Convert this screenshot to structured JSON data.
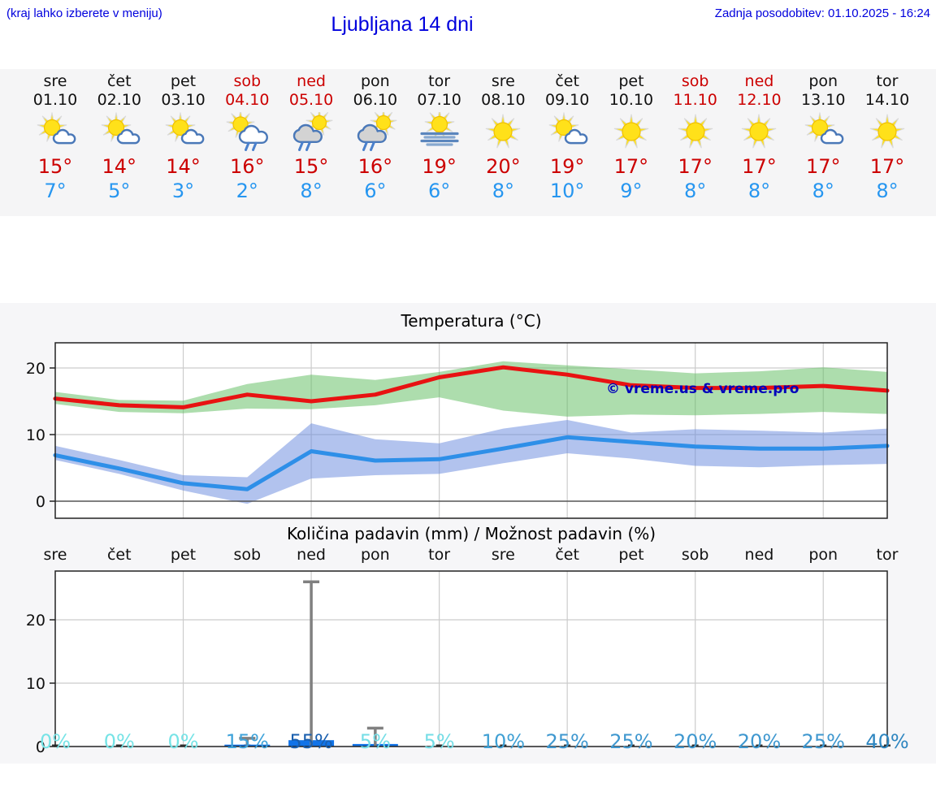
{
  "header": {
    "menu_hint": "(kraj lahko izberete v meniju)",
    "title": "Ljubljana 14 dni",
    "last_update": "Zadnja posodobitev: 01.10.2025 - 16:24"
  },
  "forecast": {
    "days": [
      {
        "weekday": "sre",
        "date": "01.10",
        "icon": "sun-cloud",
        "high": "15°",
        "low": "7°",
        "weekend": false
      },
      {
        "weekday": "čet",
        "date": "02.10",
        "icon": "sun-cloud",
        "high": "14°",
        "low": "5°",
        "weekend": false
      },
      {
        "weekday": "pet",
        "date": "03.10",
        "icon": "sun-cloud",
        "high": "14°",
        "low": "3°",
        "weekend": false
      },
      {
        "weekday": "sob",
        "date": "04.10",
        "icon": "sun-raincloud",
        "high": "16°",
        "low": "2°",
        "weekend": true
      },
      {
        "weekday": "ned",
        "date": "05.10",
        "icon": "cloud-sun-rain",
        "high": "15°",
        "low": "8°",
        "weekend": true
      },
      {
        "weekday": "pon",
        "date": "06.10",
        "icon": "cloud-sun-rain",
        "high": "16°",
        "low": "6°",
        "weekend": false
      },
      {
        "weekday": "tor",
        "date": "07.10",
        "icon": "sun-fog",
        "high": "19°",
        "low": "6°",
        "weekend": false
      },
      {
        "weekday": "sre",
        "date": "08.10",
        "icon": "sun",
        "high": "20°",
        "low": "8°",
        "weekend": false
      },
      {
        "weekday": "čet",
        "date": "09.10",
        "icon": "sun-cloud",
        "high": "19°",
        "low": "10°",
        "weekend": false
      },
      {
        "weekday": "pet",
        "date": "10.10",
        "icon": "sun",
        "high": "17°",
        "low": "9°",
        "weekend": false
      },
      {
        "weekday": "sob",
        "date": "11.10",
        "icon": "sun",
        "high": "17°",
        "low": "8°",
        "weekend": true
      },
      {
        "weekday": "ned",
        "date": "12.10",
        "icon": "sun",
        "high": "17°",
        "low": "8°",
        "weekend": true
      },
      {
        "weekday": "pon",
        "date": "13.10",
        "icon": "sun-cloud",
        "high": "17°",
        "low": "8°",
        "weekend": false
      },
      {
        "weekday": "tor",
        "date": "14.10",
        "icon": "sun",
        "high": "17°",
        "low": "8°",
        "weekend": false
      }
    ]
  },
  "chart_data": [
    {
      "type": "line",
      "title": "Temperatura (°C)",
      "categories": [
        "sre",
        "čet",
        "pet",
        "sob",
        "ned",
        "pon",
        "tor",
        "sre",
        "čet",
        "pet",
        "sob",
        "ned",
        "pon",
        "tor"
      ],
      "series": [
        {
          "name": "high",
          "color": "#e81212",
          "values": [
            15.4,
            14.4,
            14.1,
            16.0,
            15.0,
            16.0,
            18.6,
            20.1,
            19.0,
            17.4,
            17.0,
            17.0,
            17.3,
            16.6
          ]
        },
        {
          "name": "low",
          "color": "#2e8fe8",
          "values": [
            6.9,
            4.9,
            2.7,
            1.8,
            7.5,
            6.1,
            6.3,
            7.9,
            9.6,
            8.9,
            8.2,
            7.9,
            7.9,
            8.3
          ]
        },
        {
          "name": "high_range_upper",
          "values": [
            16.4,
            15.2,
            15.1,
            17.6,
            19.0,
            18.2,
            19.4,
            21.0,
            20.4,
            19.8,
            19.2,
            19.5,
            20.1,
            19.4
          ]
        },
        {
          "name": "high_range_lower",
          "values": [
            14.6,
            13.4,
            13.2,
            13.9,
            13.8,
            14.4,
            15.6,
            13.6,
            12.7,
            13.0,
            12.9,
            13.1,
            13.4,
            13.1
          ]
        },
        {
          "name": "low_range_upper",
          "values": [
            8.3,
            6.2,
            3.9,
            3.6,
            11.7,
            9.3,
            8.7,
            10.9,
            12.2,
            10.3,
            10.8,
            10.6,
            10.3,
            10.9
          ]
        },
        {
          "name": "low_range_lower",
          "values": [
            6.2,
            4.1,
            1.6,
            -0.4,
            3.4,
            3.9,
            4.1,
            5.7,
            7.2,
            6.4,
            5.3,
            5.1,
            5.4,
            5.6
          ]
        }
      ],
      "ylim": [
        -2.6,
        23.8
      ],
      "yticks": [
        0,
        10,
        20
      ],
      "xgrid_at_days": [
        3,
        5,
        7,
        9,
        11,
        13
      ],
      "grid": true,
      "legend": "none",
      "watermark": "© vreme.us & vreme.pro"
    },
    {
      "type": "bar",
      "title": "Količina padavin (mm) / Možnost padavin (%)",
      "categories": [
        "sre",
        "čet",
        "pet",
        "sob",
        "ned",
        "pon",
        "tor",
        "sre",
        "čet",
        "pet",
        "sob",
        "ned",
        "pon",
        "tor"
      ],
      "values_mm": [
        0,
        0,
        0,
        0.3,
        1.0,
        0.4,
        0,
        0,
        0,
        0,
        0,
        0,
        0,
        0
      ],
      "max_mm": [
        0,
        0,
        0,
        1.3,
        26,
        2.9,
        0,
        0,
        0,
        0,
        0,
        0,
        0,
        0
      ],
      "probability_pct": [
        0,
        0,
        0,
        15,
        55,
        5,
        5,
        10,
        25,
        25,
        20,
        20,
        25,
        40
      ],
      "ylim": [
        0,
        27.7
      ],
      "yticks": [
        0,
        10,
        20
      ],
      "xgrid_at_days": [
        3,
        5,
        7,
        9,
        11,
        13
      ],
      "grid": true,
      "bar_color": "#1173e8",
      "whisker_color": "#808080"
    }
  ],
  "colors": {
    "link_blue": "#0000dd",
    "red": "#cc0000",
    "low_blue": "#2696f0",
    "strip_bg": "#f5f5f6",
    "figure_bg": "#f6f6f8",
    "band_green": "#5bbb5b",
    "band_blue": "#6688dd",
    "watermark_blue": "#0000bb",
    "pct": {
      "0": "#76e3e6",
      "5": "#74dde6",
      "10": "#40a0d4",
      "15": "#3fa3da",
      "20": "#3e97cf",
      "25": "#3e97cf",
      "40": "#2e86c0",
      "55": "#1a5fae"
    }
  }
}
